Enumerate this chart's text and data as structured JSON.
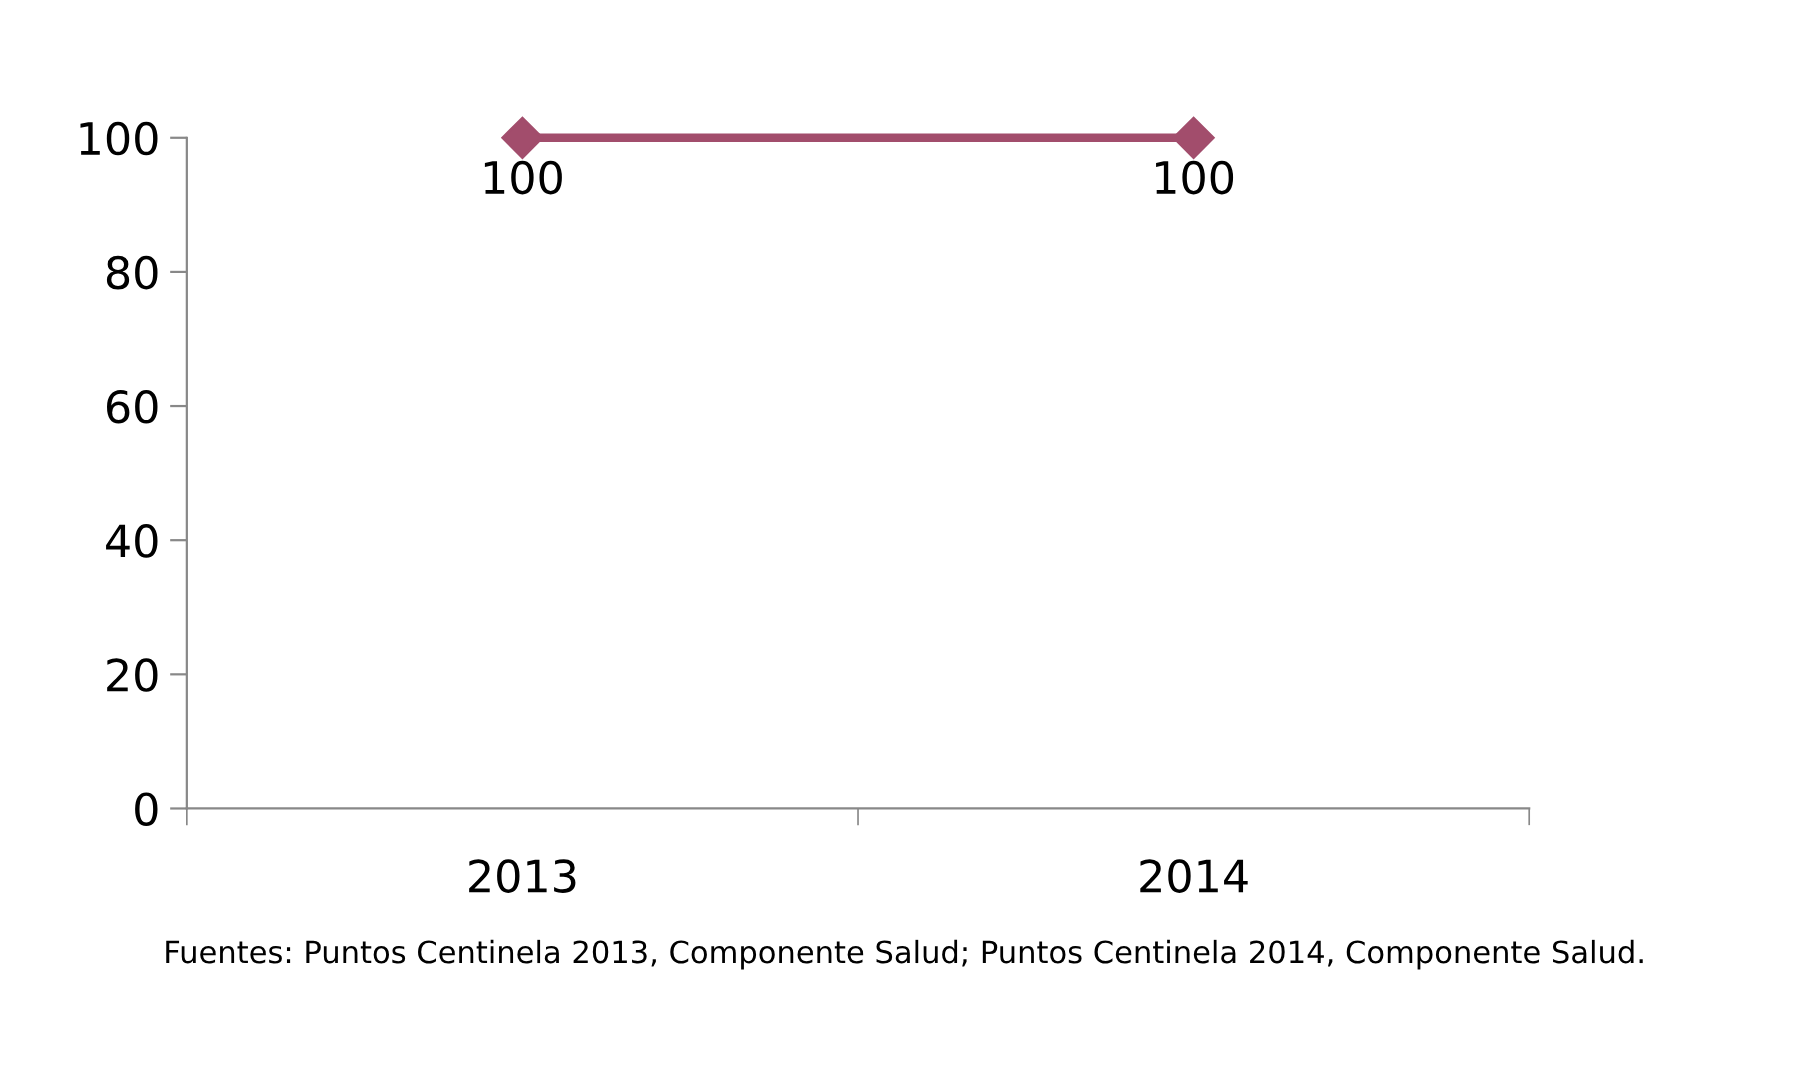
{
  "chart_data": {
    "type": "line",
    "categories": [
      "2013",
      "2014"
    ],
    "series": [
      {
        "color": "#a24d6c",
        "values": [
          100,
          100
        ]
      }
    ],
    "ylim": [
      0,
      100
    ],
    "yticks": [
      0,
      20,
      40,
      60,
      80,
      100
    ],
    "marker": "diamond",
    "line_style": "solid",
    "grid": false,
    "data_labels": true,
    "annotations": [
      "Fuentes: Puntos Centinela 2013, Componente Salud; Puntos Centinela 2014, Componente Salud."
    ]
  }
}
